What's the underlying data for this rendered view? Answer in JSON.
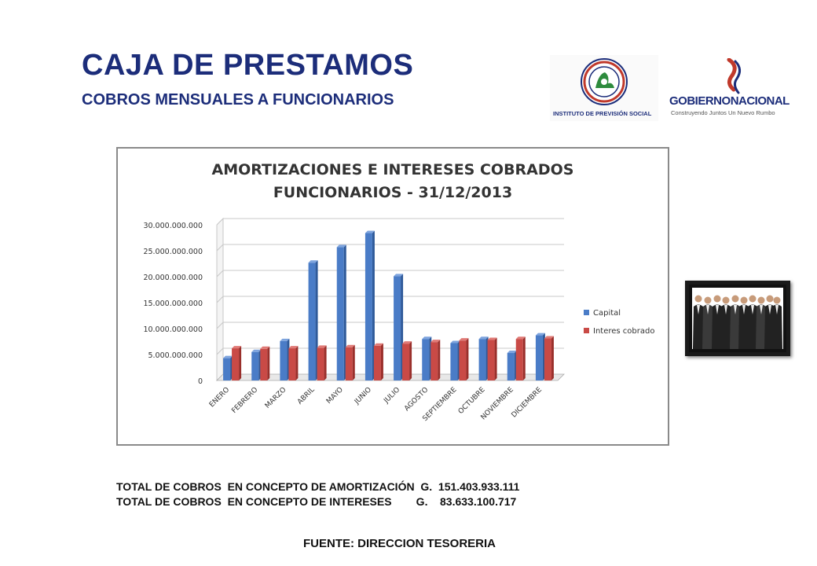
{
  "header": {
    "title": "CAJA DE PRESTAMOS",
    "subtitle": "COBROS MENSUALES A FUNCIONARIOS"
  },
  "logos": {
    "ips_text": "INSTITUTO DE PREVISIÓN SOCIAL",
    "gob_text_1": "GOBIERNO",
    "gob_text_2": "NACIONAL",
    "gob_tagline": "Construyendo Juntos Un Nuevo Rumbo"
  },
  "totals": {
    "line1": "TOTAL DE COBROS  EN CONCEPTO DE AMORTIZACIÓN  G.  151.403.933.111",
    "line2": "TOTAL DE COBROS  EN CONCEPTO DE INTERESES        G.    83.633.100.717"
  },
  "source": "FUENTE: DIRECCION TESORERIA",
  "colors": {
    "capital": "#4a7cc7",
    "interes": "#c94a46",
    "title": "#1c2d7a"
  },
  "chart_data": {
    "type": "bar",
    "title_line1": "AMORTIZACIONES E INTERESES COBRADOS",
    "title_line2": "FUNCIONARIOS - 31/12/2013",
    "categories": [
      "ENERO",
      "FEBRERO",
      "MARZO",
      "ABRIL",
      "MAYO",
      "JUNIO",
      "JULIO",
      "AGOSTO",
      "SEPTIEMBRE",
      "OCTUBRE",
      "NOVIEMBRE",
      "DICIEMBRE"
    ],
    "series": [
      {
        "name": "Capital",
        "values": [
          4300000000,
          5500000000,
          7600000000,
          22700000000,
          25700000000,
          28400000000,
          20100000000,
          8000000000,
          7200000000,
          8000000000,
          5300000000,
          8700000000
        ]
      },
      {
        "name": "Interes cobrado",
        "values": [
          6200000000,
          6100000000,
          6200000000,
          6300000000,
          6400000000,
          6700000000,
          7100000000,
          7400000000,
          7700000000,
          7800000000,
          8000000000,
          8100000000
        ]
      }
    ],
    "ylim": [
      0,
      30000000000
    ],
    "yticks": [
      "0",
      "5.000.000.000",
      "10.000.000.000",
      "15.000.000.000",
      "20.000.000.000",
      "25.000.000.000",
      "30.000.000.000"
    ],
    "grid": true,
    "legend": "right"
  }
}
